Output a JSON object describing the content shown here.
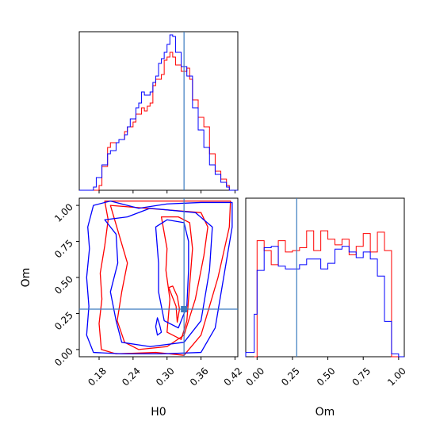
{
  "chart_data": {
    "type": "corner",
    "params": [
      "H0",
      "Om"
    ],
    "truth": {
      "H0": 0.33,
      "Om": 0.28
    },
    "colors": {
      "red": "#ff0000",
      "blue": "#0000ff",
      "truth": "#3a7bbf",
      "frame": "#000000"
    },
    "panels": [
      {
        "id": "hist-H0",
        "type": "histogram",
        "xlim": [
          0.145,
          0.425
        ],
        "series": [
          {
            "color": "#ff0000",
            "edges": [
              0.145,
              0.15,
              0.155,
              0.16,
              0.165,
              0.17,
              0.175,
              0.18,
              0.185,
              0.19,
              0.195,
              0.2,
              0.205,
              0.21,
              0.215,
              0.22,
              0.225,
              0.23,
              0.235,
              0.24,
              0.245,
              0.25,
              0.255,
              0.26,
              0.265,
              0.27,
              0.275,
              0.28,
              0.285,
              0.29,
              0.295,
              0.3,
              0.305,
              0.31,
              0.315,
              0.32,
              0.325,
              0.33,
              0.335,
              0.34,
              0.345,
              0.35,
              0.355,
              0.36,
              0.365,
              0.37,
              0.375,
              0.38,
              0.385,
              0.39,
              0.395,
              0.4,
              0.405,
              0.41,
              0.415,
              0.42,
              0.425
            ],
            "counts": [
              0,
              0,
              0,
              0,
              0,
              0,
              0,
              0.03,
              0.15,
              0.15,
              0.27,
              0.3,
              0.3,
              0.3,
              0.32,
              0.32,
              0.37,
              0.4,
              0.4,
              0.43,
              0.48,
              0.48,
              0.52,
              0.5,
              0.53,
              0.55,
              0.66,
              0.7,
              0.7,
              0.73,
              0.82,
              0.84,
              0.87,
              0.84,
              0.79,
              0.79,
              0.75,
              0.75,
              0.77,
              0.7,
              0.57,
              0.57,
              0.46,
              0.46,
              0.4,
              0.4,
              0.23,
              0.23,
              0.12,
              0.12,
              0.07,
              0.07,
              0.03,
              0,
              0,
              0
            ]
          },
          {
            "color": "#0000ff",
            "edges": [
              0.145,
              0.15,
              0.155,
              0.16,
              0.165,
              0.17,
              0.175,
              0.18,
              0.185,
              0.19,
              0.195,
              0.2,
              0.205,
              0.21,
              0.215,
              0.22,
              0.225,
              0.23,
              0.235,
              0.24,
              0.245,
              0.25,
              0.255,
              0.26,
              0.265,
              0.27,
              0.275,
              0.28,
              0.285,
              0.29,
              0.295,
              0.3,
              0.305,
              0.31,
              0.315,
              0.32,
              0.325,
              0.33,
              0.335,
              0.34,
              0.345,
              0.35,
              0.355,
              0.36,
              0.365,
              0.37,
              0.375,
              0.38,
              0.385,
              0.39,
              0.395,
              0.4,
              0.405,
              0.41,
              0.415,
              0.42,
              0.425
            ],
            "counts": [
              0,
              0,
              0,
              0,
              0,
              0.02,
              0.08,
              0.08,
              0.16,
              0.16,
              0.23,
              0.25,
              0.25,
              0.3,
              0.32,
              0.32,
              0.35,
              0.4,
              0.45,
              0.45,
              0.52,
              0.55,
              0.62,
              0.6,
              0.6,
              0.62,
              0.68,
              0.72,
              0.8,
              0.83,
              0.87,
              0.92,
              0.98,
              0.97,
              0.87,
              0.87,
              0.78,
              0.78,
              0.72,
              0.72,
              0.52,
              0.52,
              0.38,
              0.38,
              0.27,
              0.27,
              0.16,
              0.16,
              0.1,
              0.1,
              0.05,
              0.05,
              0.02,
              0,
              0,
              0
            ]
          }
        ]
      },
      {
        "id": "hist-Om",
        "type": "histogram",
        "xlim": [
          -0.08,
          1.04
        ],
        "xticks": [
          "0.00",
          "0.25",
          "0.50",
          "0.75",
          "1.00"
        ],
        "series": [
          {
            "color": "#ff0000",
            "edges": [
              -0.02,
              0.0,
              0.05,
              0.1,
              0.15,
              0.2,
              0.25,
              0.3,
              0.35,
              0.4,
              0.45,
              0.5,
              0.55,
              0.6,
              0.65,
              0.7,
              0.75,
              0.8,
              0.85,
              0.9,
              0.95,
              1.0
            ],
            "counts": [
              0.0,
              0.82,
              0.75,
              0.65,
              0.82,
              0.74,
              0.75,
              0.77,
              0.89,
              0.75,
              0.89,
              0.83,
              0.79,
              0.83,
              0.72,
              0.78,
              0.87,
              0.74,
              0.88,
              0.75,
              0.0
            ]
          },
          {
            "color": "#0000ff",
            "edges": [
              -0.08,
              -0.02,
              0.0,
              0.05,
              0.1,
              0.15,
              0.2,
              0.25,
              0.3,
              0.35,
              0.4,
              0.45,
              0.5,
              0.55,
              0.6,
              0.65,
              0.7,
              0.75,
              0.8,
              0.85,
              0.9,
              0.95,
              1.0,
              1.04
            ],
            "counts": [
              0.03,
              0.3,
              0.61,
              0.77,
              0.78,
              0.64,
              0.62,
              0.62,
              0.65,
              0.69,
              0.69,
              0.62,
              0.66,
              0.76,
              0.78,
              0.74,
              0.7,
              0.74,
              0.69,
              0.57,
              0.25,
              0.02,
              0.0
            ]
          }
        ]
      },
      {
        "id": "scatter-H0-Om",
        "type": "contour",
        "xlim": [
          0.145,
          0.425
        ],
        "ylim": [
          -0.05,
          1.05
        ],
        "xticks": [
          "0.18",
          "0.24",
          "0.30",
          "0.36",
          "0.42"
        ],
        "yticks": [
          "0.00",
          "0.25",
          "0.50",
          "0.75",
          "1.00"
        ],
        "xlabel": "H0",
        "ylabel": "Om",
        "series": [
          {
            "color": "#ff0000",
            "contours": [
              [
                [
                  0.19,
                  1.03
                ],
                [
                  0.196,
                  0.9
                ],
                [
                  0.19,
                  0.72
                ],
                [
                  0.182,
                  0.53
                ],
                [
                  0.185,
                  0.35
                ],
                [
                  0.18,
                  0.18
                ],
                [
                  0.184,
                  0.0
                ],
                [
                  0.21,
                  -0.03
                ],
                [
                  0.28,
                  -0.02
                ],
                [
                  0.33,
                  -0.04
                ],
                [
                  0.36,
                  0.1
                ],
                [
                  0.39,
                  0.5
                ],
                [
                  0.41,
                  0.85
                ],
                [
                  0.412,
                  1.03
                ]
              ],
              [
                [
                  0.2,
                  1.0
                ],
                [
                  0.215,
                  0.8
                ],
                [
                  0.23,
                  0.6
                ],
                [
                  0.22,
                  0.4
                ],
                [
                  0.212,
                  0.2
                ],
                [
                  0.225,
                  0.05
                ],
                [
                  0.25,
                  0.0
                ],
                [
                  0.3,
                  0.02
                ],
                [
                  0.33,
                  0.1
                ],
                [
                  0.35,
                  0.35
                ],
                [
                  0.365,
                  0.65
                ],
                [
                  0.372,
                  0.85
                ],
                [
                  0.36,
                  0.95
                ]
              ],
              [
                [
                  0.29,
                  0.92
                ],
                [
                  0.3,
                  0.7
                ],
                [
                  0.298,
                  0.55
                ],
                [
                  0.305,
                  0.35
                ],
                [
                  0.3,
                  0.12
                ],
                [
                  0.325,
                  0.07
                ],
                [
                  0.335,
                  0.2
                ],
                [
                  0.34,
                  0.45
                ],
                [
                  0.345,
                  0.7
                ],
                [
                  0.34,
                  0.88
                ],
                [
                  0.32,
                  0.92
                ]
              ],
              [
                [
                  0.303,
                  0.43
                ],
                [
                  0.31,
                  0.36
                ],
                [
                  0.316,
                  0.3
                ],
                [
                  0.318,
                  0.19
                ],
                [
                  0.322,
                  0.28
                ],
                [
                  0.318,
                  0.37
                ],
                [
                  0.31,
                  0.44
                ]
              ]
            ]
          },
          {
            "color": "#0000ff",
            "contours": [
              [
                [
                  0.17,
                  1.0
                ],
                [
                  0.16,
                  0.85
                ],
                [
                  0.163,
                  0.7
                ],
                [
                  0.158,
                  0.5
                ],
                [
                  0.162,
                  0.3
                ],
                [
                  0.158,
                  0.1
                ],
                [
                  0.17,
                  -0.02
                ],
                [
                  0.22,
                  -0.03
                ],
                [
                  0.29,
                  -0.03
                ],
                [
                  0.36,
                  -0.02
                ],
                [
                  0.385,
                  0.15
                ],
                [
                  0.4,
                  0.5
                ],
                [
                  0.415,
                  0.85
                ],
                [
                  0.415,
                  1.02
                ],
                [
                  0.36,
                  1.02
                ],
                [
                  0.3,
                  1.01
                ],
                [
                  0.25,
                  0.98
                ],
                [
                  0.2,
                  1.03
                ]
              ],
              [
                [
                  0.19,
                  0.9
                ],
                [
                  0.21,
                  0.8
                ],
                [
                  0.213,
                  0.6
                ],
                [
                  0.2,
                  0.4
                ],
                [
                  0.21,
                  0.2
                ],
                [
                  0.22,
                  0.05
                ],
                [
                  0.27,
                  0.02
                ],
                [
                  0.33,
                  0.05
                ],
                [
                  0.36,
                  0.2
                ],
                [
                  0.375,
                  0.55
                ],
                [
                  0.38,
                  0.85
                ],
                [
                  0.35,
                  0.95
                ],
                [
                  0.27,
                  0.98
                ],
                [
                  0.23,
                  0.92
                ]
              ],
              [
                [
                  0.28,
                  0.85
                ],
                [
                  0.285,
                  0.6
                ],
                [
                  0.285,
                  0.4
                ],
                [
                  0.295,
                  0.2
                ],
                [
                  0.32,
                  0.15
                ],
                [
                  0.335,
                  0.3
                ],
                [
                  0.338,
                  0.55
                ],
                [
                  0.338,
                  0.75
                ],
                [
                  0.33,
                  0.88
                ],
                [
                  0.3,
                  0.9
                ]
              ],
              [
                [
                  0.283,
                  0.22
                ],
                [
                  0.287,
                  0.17
                ],
                [
                  0.29,
                  0.12
                ],
                [
                  0.283,
                  0.1
                ],
                [
                  0.28,
                  0.16
                ]
              ]
            ]
          }
        ]
      }
    ]
  }
}
